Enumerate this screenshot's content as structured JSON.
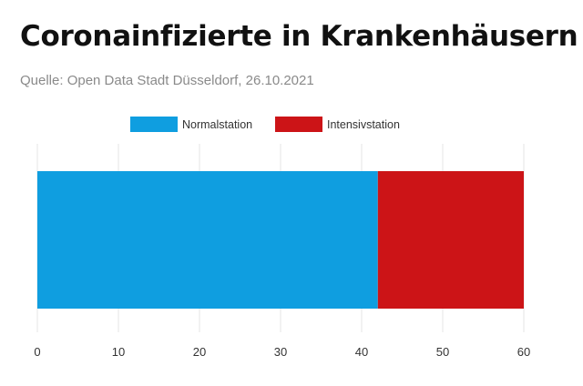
{
  "chart_data": {
    "type": "bar",
    "orientation": "horizontal",
    "stacked": true,
    "title": "Coronainfizierte in Krankenhäusern",
    "subtitle": "Quelle: Open Data Stadt Düsseldorf, 26.10.2021",
    "categories": [
      ""
    ],
    "series": [
      {
        "name": "Normalstation",
        "values": [
          42
        ],
        "color": "#0f9ee0"
      },
      {
        "name": "Intensivstation",
        "values": [
          18
        ],
        "color": "#cc1417"
      }
    ],
    "xlim": [
      0,
      60
    ],
    "xticks": [
      0,
      10,
      20,
      30,
      40,
      50,
      60
    ],
    "xlabel": "",
    "ylabel": "",
    "grid": true,
    "legend": "top"
  }
}
